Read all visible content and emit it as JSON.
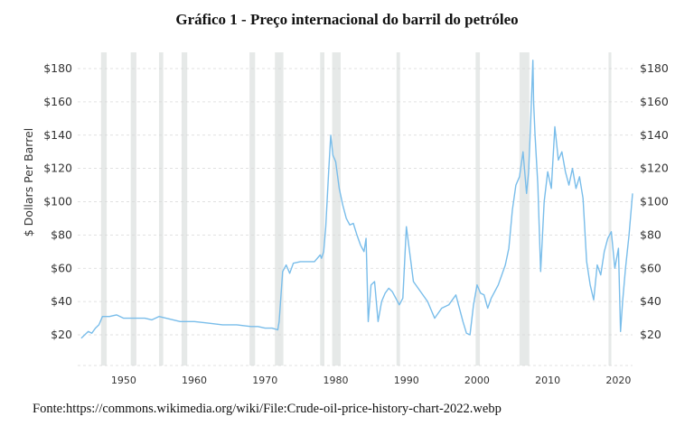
{
  "title": "Gráfico 1 - Preço internacional do barril do petróleo",
  "source": "Fonte:https://commons.wikimedia.org/wiki/File:Crude-oil-price-history-chart-2022.webp",
  "colors": {
    "line": "#79BDEA",
    "recession": "#E6E9E8",
    "grid": "#D8D8D8"
  },
  "chart_data": {
    "type": "line",
    "title": "Gráfico 1 - Preço internacional do barril do petróleo",
    "xlabel": "",
    "ylabel": "$ Dollars Per Barrel",
    "xlim": [
      1943.5,
      2022.0
    ],
    "ylim": [
      10,
      190
    ],
    "y_ticks": [
      20,
      40,
      60,
      80,
      100,
      120,
      140,
      160,
      180
    ],
    "y_tick_labels": [
      "$20",
      "$40",
      "$60",
      "$80",
      "$100",
      "$120",
      "$140",
      "$160",
      "$180"
    ],
    "x_ticks": [
      1950,
      1960,
      1970,
      1980,
      1990,
      2000,
      2010,
      2020
    ],
    "x_tick_labels": [
      "1950",
      "1960",
      "1970",
      "1980",
      "1990",
      "2000",
      "2010",
      "2020"
    ],
    "grid": "horizontal dashed",
    "recession_shading": [
      [
        1946.8,
        1947.6
      ],
      [
        1951.0,
        1951.8
      ],
      [
        1955.0,
        1955.6
      ],
      [
        1958.2,
        1959.0
      ],
      [
        1967.8,
        1968.6
      ],
      [
        1971.4,
        1972.6
      ],
      [
        1977.8,
        1978.4
      ],
      [
        1979.5,
        1980.7
      ],
      [
        1988.6,
        1989.1
      ],
      [
        1999.8,
        2000.4
      ],
      [
        2006.0,
        2007.4
      ],
      [
        2018.6,
        2019.0
      ]
    ],
    "series": [
      {
        "x": [
          1944.0,
          1944.5,
          1945.0,
          1945.5,
          1946.0,
          1946.5,
          1947.0,
          1948.0,
          1949.0,
          1950.0,
          1951.0,
          1952.0,
          1953.0,
          1954.0,
          1955.0,
          1956.0,
          1957.0,
          1958.0,
          1959.0,
          1960.0,
          1962.0,
          1964.0,
          1966.0,
          1968.0,
          1969.0,
          1970.0,
          1971.0,
          1971.8,
          1972.0,
          1972.5,
          1973.0,
          1973.5,
          1974.0,
          1975.0,
          1976.0,
          1977.0,
          1977.8,
          1978.0,
          1978.3,
          1978.6,
          1979.0,
          1979.3,
          1979.6,
          1980.0,
          1980.5,
          1981.0,
          1981.5,
          1982.0,
          1982.5,
          1983.0,
          1983.5,
          1984.0,
          1984.3,
          1984.6,
          1985.0,
          1985.5,
          1986.0,
          1986.5,
          1987.0,
          1987.5,
          1988.0,
          1988.5,
          1989.0,
          1989.5,
          1990.0,
          1991.0,
          1992.0,
          1993.0,
          1994.0,
          1995.0,
          1996.0,
          1997.0,
          1998.0,
          1998.5,
          1999.0,
          1999.5,
          2000.0,
          2000.5,
          2001.0,
          2001.5,
          2002.0,
          2003.0,
          2004.0,
          2004.5,
          2005.0,
          2005.5,
          2006.0,
          2006.5,
          2007.0,
          2007.3,
          2007.6,
          2007.9,
          2008.0,
          2008.2,
          2008.6,
          2009.0,
          2009.5,
          2010.0,
          2010.5,
          2011.0,
          2011.5,
          2012.0,
          2012.5,
          2013.0,
          2013.5,
          2014.0,
          2014.5,
          2015.0,
          2015.5,
          2016.0,
          2016.5,
          2017.0,
          2017.5,
          2018.0,
          2018.5,
          2019.0,
          2019.5,
          2020.0,
          2020.3,
          2020.6,
          2021.0,
          2021.5,
          2022.0
        ],
        "values": [
          18,
          20,
          22,
          21,
          24,
          26,
          31,
          31,
          32,
          30,
          30,
          30,
          30,
          29,
          31,
          30,
          29,
          28,
          28,
          28,
          27,
          26,
          26,
          25,
          25,
          24,
          24,
          23,
          28,
          58,
          62,
          57,
          63,
          64,
          64,
          64,
          68,
          66,
          70,
          85,
          118,
          140,
          128,
          124,
          108,
          98,
          90,
          86,
          87,
          80,
          74,
          70,
          78,
          28,
          50,
          52,
          28,
          40,
          45,
          48,
          46,
          42,
          38,
          42,
          85,
          52,
          46,
          40,
          30,
          36,
          38,
          44,
          28,
          21,
          20,
          38,
          50,
          45,
          44,
          36,
          42,
          50,
          62,
          72,
          95,
          110,
          115,
          130,
          105,
          118,
          150,
          185,
          160,
          140,
          110,
          58,
          100,
          118,
          108,
          145,
          125,
          130,
          118,
          110,
          120,
          108,
          115,
          102,
          64,
          50,
          41,
          62,
          56,
          70,
          78,
          82,
          60,
          72,
          22,
          40,
          60,
          80,
          105
        ]
      }
    ]
  }
}
